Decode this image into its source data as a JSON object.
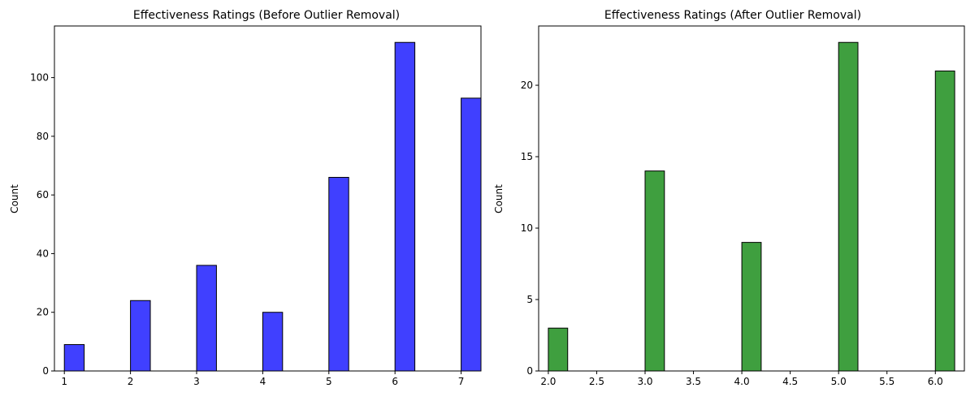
{
  "chart_data": [
    {
      "type": "bar",
      "title": "Effectiveness Ratings (Before Outlier Removal)",
      "xlabel": "",
      "ylabel": "Count",
      "x": [
        1,
        2,
        3,
        4,
        5,
        6,
        7
      ],
      "values": [
        9,
        24,
        36,
        20,
        66,
        112,
        93
      ],
      "bar_width": 0.3,
      "xlim": [
        0.85,
        7.3
      ],
      "ylim": [
        0,
        117.6
      ],
      "xticks": [
        1,
        2,
        3,
        4,
        5,
        6,
        7
      ],
      "xtick_labels": [
        "1",
        "2",
        "3",
        "4",
        "5",
        "6",
        "7"
      ],
      "yticks": [
        0,
        20,
        40,
        60,
        80,
        100
      ],
      "ytick_labels": [
        "0",
        "20",
        "40",
        "60",
        "80",
        "100"
      ],
      "color": "#4040ff",
      "edge_color": "#000000",
      "grid": false
    },
    {
      "type": "bar",
      "title": "Effectiveness Ratings (After Outlier Removal)",
      "xlabel": "",
      "ylabel": "Count",
      "x": [
        2,
        3,
        4,
        5,
        6
      ],
      "values": [
        3,
        14,
        9,
        23,
        21
      ],
      "bar_width": 0.2,
      "xlim": [
        1.9,
        6.3
      ],
      "ylim": [
        0,
        24.15
      ],
      "xticks": [
        2,
        2.5,
        3,
        3.5,
        4,
        4.5,
        5,
        5.5,
        6
      ],
      "xtick_labels": [
        "2.0",
        "2.5",
        "3.0",
        "3.5",
        "4.0",
        "4.5",
        "5.0",
        "5.5",
        "6.0"
      ],
      "yticks": [
        0,
        5,
        10,
        15,
        20
      ],
      "ytick_labels": [
        "0",
        "5",
        "10",
        "15",
        "20"
      ],
      "color": "#3f9f3f",
      "edge_color": "#000000",
      "grid": false
    }
  ]
}
